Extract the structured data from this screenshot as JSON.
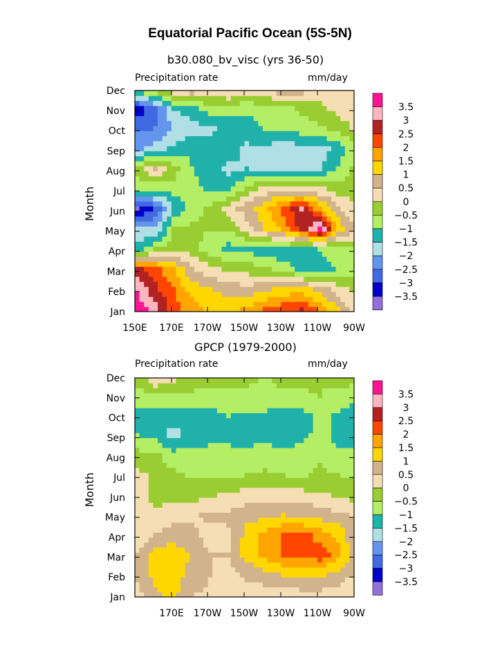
{
  "title": "Equatorial Pacific Ocean (5S-5N)",
  "chart_data": [
    {
      "type": "heatmap",
      "subtitle": "b30.080_bv_visc (yrs 36-50)",
      "left_label": "Precipitation rate",
      "right_label": "mm/day",
      "ylabel": "Month",
      "x_tick_labels": [
        "150E",
        "170E",
        "170W",
        "150W",
        "130W",
        "110W",
        "90W"
      ],
      "y_tick_labels": [
        "Jan",
        "Feb",
        "Mar",
        "Apr",
        "May",
        "Jun",
        "Jul",
        "Aug",
        "Sep",
        "Oct",
        "Nov",
        "Dec"
      ],
      "x_range": [
        "150E",
        "90W"
      ],
      "colorbar": {
        "labels": [
          "3.5",
          "3",
          "2.5",
          "2",
          "1.5",
          "1",
          "0.5",
          "0",
          "-0.5",
          "-1",
          "-1.5",
          "-2",
          "-2.5",
          "-3",
          "-3.5"
        ],
        "colors": [
          "#ff1493",
          "#ffb6c1",
          "#b22222",
          "#ff4500",
          "#ffa500",
          "#ffd700",
          "#d2b48c",
          "#f5deb3",
          "#9acd32",
          "#b3ee64",
          "#20b2aa",
          "#b0e0e6",
          "#6495ed",
          "#4169e1",
          "#0000cd",
          "#9370db"
        ]
      },
      "x_centers": [
        150,
        160,
        170,
        180,
        190,
        200,
        210,
        220,
        230,
        240,
        250,
        260,
        270
      ],
      "values": [
        [
          3.8,
          3.2,
          2.2,
          1.7,
          1.3,
          1.3,
          1.6,
          2.0,
          2.3,
          2.5,
          1.9,
          1.0,
          0.3
        ],
        [
          3.4,
          2.6,
          2.0,
          1.3,
          1.0,
          0.8,
          0.7,
          0.9,
          1.2,
          1.2,
          0.8,
          0.2,
          -0.2
        ],
        [
          2.6,
          2.3,
          1.5,
          0.6,
          0.2,
          -0.1,
          -0.2,
          -0.4,
          -0.8,
          -1.2,
          -1.2,
          -1.0,
          -0.8
        ],
        [
          -1.2,
          -0.5,
          -0.2,
          -0.3,
          -0.8,
          -1.2,
          -1.2,
          -1.4,
          -1.3,
          -1.3,
          -1.0,
          -0.8,
          -0.6
        ],
        [
          -2.0,
          -2.0,
          -0.5,
          -0.4,
          -0.5,
          -0.5,
          0.2,
          1.1,
          1.6,
          2.7,
          3.7,
          1.4,
          0.5
        ],
        [
          -3.6,
          -3.0,
          -1.5,
          -0.8,
          -0.3,
          0.2,
          0.8,
          1.3,
          2.2,
          3.0,
          1.6,
          0.6,
          0.0
        ],
        [
          -0.8,
          -1.0,
          -0.7,
          -0.8,
          -1.2,
          -1.2,
          -0.3,
          0.2,
          0.3,
          0.3,
          0.1,
          -0.3,
          -0.2
        ],
        [
          -0.3,
          0.6,
          -0.3,
          -1.0,
          -1.4,
          -1.6,
          -1.5,
          -1.6,
          -1.8,
          -1.9,
          -1.6,
          -0.9,
          -0.3
        ],
        [
          -2.2,
          -1.8,
          -1.4,
          -1.1,
          -1.2,
          -1.2,
          -1.6,
          -1.6,
          -1.8,
          -1.6,
          -1.7,
          -1.4,
          -0.5
        ],
        [
          -2.6,
          -2.5,
          -2.0,
          -1.7,
          -1.6,
          -1.3,
          -1.2,
          -1.0,
          -1.0,
          -0.8,
          -0.6,
          -0.3,
          0.1
        ],
        [
          -3.3,
          -2.7,
          -1.5,
          -1.2,
          -0.8,
          -0.9,
          -0.9,
          -0.8,
          -0.7,
          -0.4,
          -0.2,
          0.2,
          0.3
        ],
        [
          -0.5,
          0.2,
          0.7,
          1.1,
          0.6,
          0.9,
          0.6,
          0.6,
          1.2,
          0.8,
          0.6,
          0.4,
          0.3
        ]
      ]
    },
    {
      "type": "heatmap",
      "subtitle": "GPCP (1979-2000)",
      "left_label": "Precipitation rate",
      "right_label": "mm/day",
      "ylabel": "Month",
      "x_tick_labels": [
        "170E",
        "170W",
        "150W",
        "130W",
        "110W",
        "90W"
      ],
      "y_tick_labels": [
        "Jan",
        "Feb",
        "Mar",
        "Apr",
        "May",
        "Jun",
        "Jul",
        "Aug",
        "Sep",
        "Oct",
        "Nov",
        "Dec"
      ],
      "x_range": [
        "150E",
        "90W"
      ],
      "colorbar": {
        "labels": [
          "3.5",
          "3",
          "2.5",
          "2",
          "1.5",
          "1",
          "0.5",
          "0",
          "-0.5",
          "-1",
          "-1.5",
          "-2",
          "-2.5",
          "-3",
          "-3.5"
        ],
        "colors": [
          "#ff1493",
          "#ffb6c1",
          "#b22222",
          "#ff4500",
          "#ffa500",
          "#ffd700",
          "#d2b48c",
          "#f5deb3",
          "#9acd32",
          "#b3ee64",
          "#20b2aa",
          "#b0e0e6",
          "#6495ed",
          "#4169e1",
          "#0000cd",
          "#9370db"
        ]
      },
      "x_centers": [
        150,
        160,
        170,
        180,
        190,
        200,
        210,
        220,
        230,
        240,
        250,
        260,
        270
      ],
      "values": [
        [
          0.3,
          0.9,
          1.1,
          0.5,
          0.4,
          0.4,
          0.3,
          0.1,
          0.3,
          0.3,
          0.3,
          0.2,
          0.1
        ],
        [
          0.6,
          1.2,
          1.3,
          0.8,
          0.5,
          0.3,
          0.6,
          0.9,
          1.0,
          1.1,
          1.1,
          0.8,
          0.4
        ],
        [
          0.5,
          1.3,
          1.4,
          0.9,
          0.5,
          0.5,
          1.2,
          1.6,
          2.0,
          2.2,
          2.3,
          1.7,
          0.6
        ],
        [
          0.2,
          0.5,
          0.7,
          0.6,
          0.3,
          0.4,
          1.2,
          1.6,
          2.1,
          2.2,
          1.8,
          1.4,
          0.5
        ],
        [
          0.2,
          0.1,
          0.4,
          0.4,
          0.6,
          0.6,
          0.8,
          0.9,
          1.0,
          0.9,
          0.8,
          0.6,
          0.4
        ],
        [
          0.4,
          -0.2,
          -0.3,
          -0.2,
          -0.1,
          0.1,
          0.2,
          0.3,
          0.2,
          0.2,
          0.1,
          -0.1,
          -0.2
        ],
        [
          0.2,
          -0.2,
          -0.4,
          -0.6,
          -0.6,
          -0.6,
          -0.5,
          -0.4,
          -0.5,
          -0.6,
          -0.4,
          -0.5,
          -0.6
        ],
        [
          -0.3,
          -0.4,
          -0.8,
          -0.8,
          -0.8,
          -0.9,
          -0.9,
          -0.8,
          -0.9,
          -0.7,
          -0.6,
          -0.9,
          -0.8
        ],
        [
          -1.0,
          -1.2,
          -1.7,
          -1.3,
          -1.2,
          -1.1,
          -1.2,
          -1.1,
          -1.3,
          -1.2,
          -0.8,
          -1.2,
          -1.3
        ],
        [
          -1.1,
          -1.3,
          -1.3,
          -1.3,
          -1.2,
          -1.0,
          -1.1,
          -1.1,
          -1.2,
          -1.2,
          -0.9,
          -1.1,
          -1.3
        ],
        [
          -0.8,
          -0.7,
          -0.6,
          -0.6,
          -0.7,
          -0.6,
          -0.6,
          -0.7,
          -0.6,
          -0.6,
          -0.5,
          -0.7,
          -0.8
        ],
        [
          -0.2,
          0.7,
          0.3,
          -0.2,
          -0.3,
          -0.4,
          -0.4,
          -0.5,
          -0.3,
          -0.3,
          -0.4,
          -0.3,
          -0.2
        ]
      ]
    }
  ]
}
